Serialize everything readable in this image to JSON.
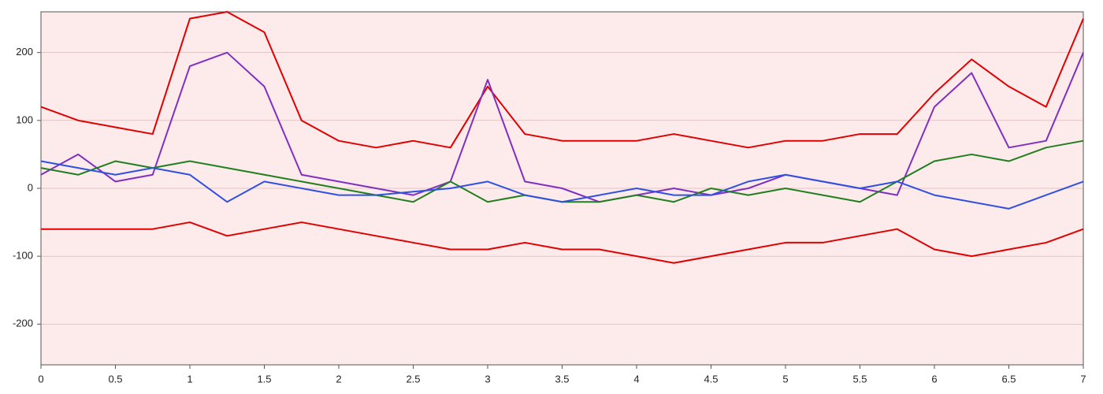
{
  "chart_data": {
    "type": "line",
    "x": [
      0,
      0.25,
      0.5,
      0.75,
      1,
      1.25,
      1.5,
      1.75,
      2,
      2.25,
      2.5,
      2.75,
      3,
      3.25,
      3.5,
      3.75,
      4,
      4.25,
      4.5,
      4.75,
      5,
      5.25,
      5.5,
      5.75,
      6,
      6.25,
      6.5,
      6.75,
      7
    ],
    "series": [
      {
        "color": "#e00000",
        "values": [
          120,
          100,
          90,
          80,
          250,
          260,
          230,
          100,
          70,
          60,
          70,
          60,
          150,
          80,
          70,
          70,
          70,
          80,
          70,
          60,
          70,
          70,
          80,
          80,
          140,
          190,
          150,
          120,
          250
        ]
      },
      {
        "color": "#e00000",
        "values": [
          -60,
          -60,
          -60,
          -60,
          -50,
          -70,
          -60,
          -50,
          -60,
          -70,
          -80,
          -90,
          -90,
          -80,
          -90,
          -90,
          -100,
          -110,
          -100,
          -90,
          -80,
          -80,
          -70,
          -60,
          -90,
          -100,
          -90,
          -80,
          -60
        ]
      },
      {
        "color": "#8030c0",
        "values": [
          20,
          50,
          10,
          20,
          180,
          200,
          150,
          20,
          10,
          0,
          -10,
          10,
          160,
          10,
          0,
          -20,
          -10,
          0,
          -10,
          0,
          20,
          10,
          0,
          -10,
          120,
          170,
          60,
          70,
          200
        ]
      },
      {
        "color": "#208020",
        "values": [
          30,
          20,
          40,
          30,
          40,
          30,
          20,
          10,
          0,
          -10,
          -20,
          10,
          -20,
          -10,
          -20,
          -20,
          -10,
          -20,
          0,
          -10,
          0,
          -10,
          -20,
          10,
          40,
          50,
          40,
          60,
          70
        ]
      },
      {
        "color": "#3050e0",
        "values": [
          40,
          30,
          20,
          30,
          20,
          -20,
          10,
          0,
          -10,
          -10,
          -5,
          0,
          10,
          -10,
          -20,
          -10,
          0,
          -10,
          -10,
          10,
          20,
          10,
          0,
          10,
          -10,
          -20,
          -30,
          -10,
          10
        ]
      }
    ],
    "xlim": [
      0,
      7
    ],
    "xticks": [
      0,
      0.5,
      1,
      1.5,
      2,
      2.5,
      3,
      3.5,
      4,
      4.5,
      5,
      5.5,
      6,
      6.5,
      7
    ],
    "ylim": [
      -260,
      260
    ],
    "yticks": [
      -200,
      -100,
      0,
      100,
      200
    ]
  }
}
